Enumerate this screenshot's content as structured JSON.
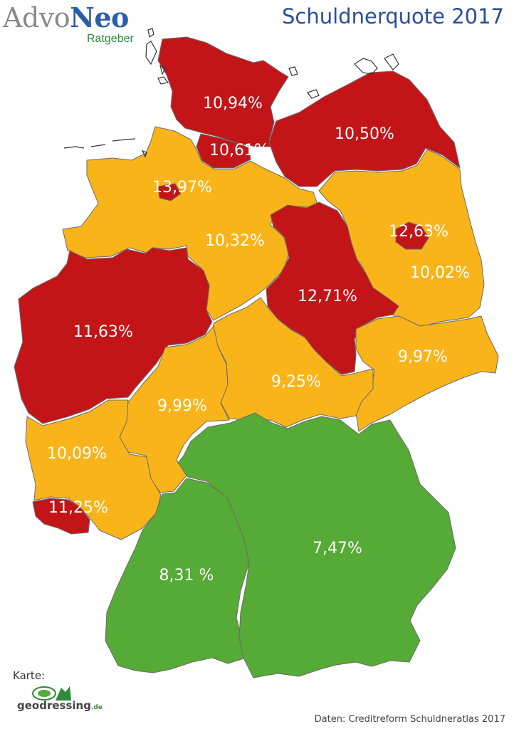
{
  "logo": {
    "brand_part1": "Advo",
    "brand_part2": "Neo",
    "sub": "Ratgeber"
  },
  "title": "Schuldnerquote 2017",
  "colors": {
    "high": "#c31518",
    "mid": "#f9b41a",
    "low": "#56aa36",
    "border": "#6b6b6b"
  },
  "regions": [
    {
      "id": "schleswig-holstein",
      "label": "10,94%",
      "value": 10.94,
      "category": "high"
    },
    {
      "id": "hamburg",
      "label": "10,61%",
      "value": 10.61,
      "category": "high"
    },
    {
      "id": "mecklenburg-vorpommern",
      "label": "10,50%",
      "value": 10.5,
      "category": "high"
    },
    {
      "id": "bremen",
      "label": "13,97%",
      "value": 13.97,
      "category": "high"
    },
    {
      "id": "niedersachsen",
      "label": "10,32%",
      "value": 10.32,
      "category": "mid"
    },
    {
      "id": "berlin",
      "label": "12,63%",
      "value": 12.63,
      "category": "high"
    },
    {
      "id": "brandenburg",
      "label": "10,02%",
      "value": 10.02,
      "category": "mid"
    },
    {
      "id": "sachsen-anhalt",
      "label": "12,71%",
      "value": 12.71,
      "category": "high"
    },
    {
      "id": "nordrhein-westfalen",
      "label": "11,63%",
      "value": 11.63,
      "category": "high"
    },
    {
      "id": "sachsen",
      "label": "9,97%",
      "value": 9.97,
      "category": "mid"
    },
    {
      "id": "thueringen",
      "label": "9,25%",
      "value": 9.25,
      "category": "mid"
    },
    {
      "id": "hessen",
      "label": "9,99%",
      "value": 9.99,
      "category": "mid"
    },
    {
      "id": "rheinland-pfalz",
      "label": "10,09%",
      "value": 10.09,
      "category": "mid"
    },
    {
      "id": "saarland",
      "label": "11,25%",
      "value": 11.25,
      "category": "high"
    },
    {
      "id": "bayern",
      "label": "7,47%",
      "value": 7.47,
      "category": "low"
    },
    {
      "id": "baden-wuerttemberg",
      "label": "8,31 %",
      "value": 8.31,
      "category": "low"
    }
  ],
  "credit": {
    "karte_label": "Karte:",
    "brand": "geodressing",
    "tld": ".de"
  },
  "source": "Daten: Creditreform Schuldneratlas 2017"
}
